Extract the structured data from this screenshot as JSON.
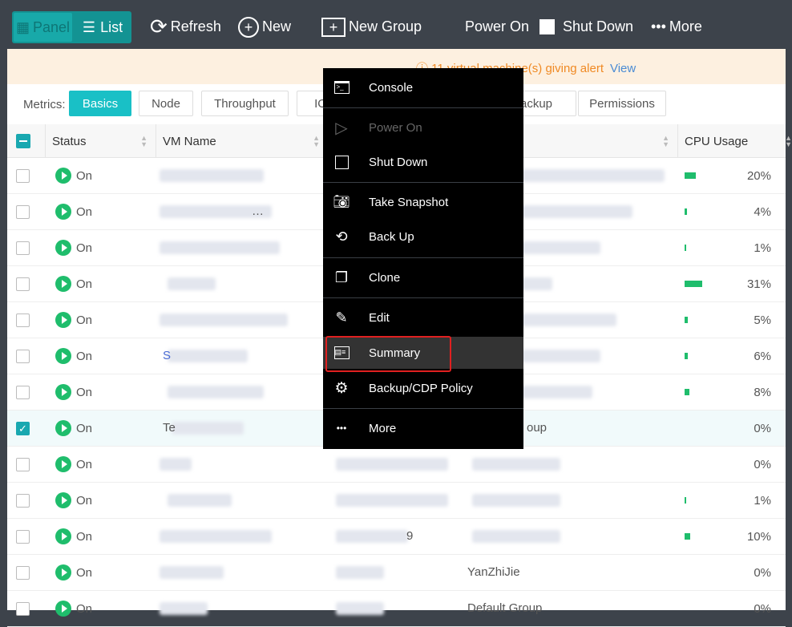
{
  "toolbar": {
    "panel": "Panel",
    "list": "List",
    "refresh": "Refresh",
    "new": "New",
    "new_group": "New Group",
    "power_on": "Power On",
    "shut_down": "Shut Down",
    "more": "More"
  },
  "alert": {
    "icon": "info-icon",
    "text": "11 virtual machine(s) giving alert",
    "link": "View"
  },
  "metrics": {
    "label": "Metrics:",
    "tabs": [
      "Basics",
      "Node",
      "Throughput",
      "IO",
      "Backup",
      "Permissions"
    ],
    "active": "Basics"
  },
  "columns": {
    "status": "Status",
    "vm_name": "VM Name",
    "cpu": "CPU Usage"
  },
  "rows": [
    {
      "status": "On",
      "name": "",
      "col4": "",
      "cpu": "20%",
      "cpu_val": 20,
      "checked": false
    },
    {
      "status": "On",
      "name": "…",
      "col4": "",
      "cpu": "4%",
      "cpu_val": 4,
      "checked": false
    },
    {
      "status": "On",
      "name": "",
      "col4": "",
      "cpu": "1%",
      "cpu_val": 1,
      "checked": false
    },
    {
      "status": "On",
      "name": "",
      "col4": "",
      "cpu": "31%",
      "cpu_val": 31,
      "checked": false
    },
    {
      "status": "On",
      "name": "",
      "col4": "",
      "cpu": "5%",
      "cpu_val": 5,
      "checked": false
    },
    {
      "status": "On",
      "name": "S",
      "col4": "",
      "cpu": "6%",
      "cpu_val": 6,
      "checked": false
    },
    {
      "status": "On",
      "name": "",
      "col4": "",
      "cpu": "8%",
      "cpu_val": 8,
      "checked": false
    },
    {
      "status": "On",
      "name": "Te",
      "col4": "oup",
      "cpu": "0%",
      "cpu_val": 0,
      "checked": true
    },
    {
      "status": "On",
      "name": "",
      "col4": "",
      "cpu": "0%",
      "cpu_val": 0,
      "checked": false
    },
    {
      "status": "On",
      "name": "",
      "col4": "",
      "cpu": "1%",
      "cpu_val": 1,
      "checked": false
    },
    {
      "status": "On",
      "name": "",
      "col3": "9",
      "col4": "",
      "cpu": "10%",
      "cpu_val": 10,
      "checked": false
    },
    {
      "status": "On",
      "name": "",
      "col4": "YanZhiJie",
      "cpu": "0%",
      "cpu_val": 0,
      "checked": false
    },
    {
      "status": "On",
      "name": "",
      "col4": "Default Group",
      "cpu": "0%",
      "cpu_val": 0,
      "checked": false
    }
  ],
  "context_menu": [
    {
      "label": "Console",
      "icon": "console-icon"
    },
    {
      "label": "Power On",
      "icon": "play-icon",
      "disabled": true
    },
    {
      "label": "Shut Down",
      "icon": "stop-icon"
    },
    {
      "label": "Take Snapshot",
      "icon": "camera-icon"
    },
    {
      "label": "Back Up",
      "icon": "backup-icon"
    },
    {
      "label": "Clone",
      "icon": "clone-icon"
    },
    {
      "label": "Edit",
      "icon": "edit-icon"
    },
    {
      "label": "Summary",
      "icon": "summary-icon",
      "highlighted": true
    },
    {
      "label": "Backup/CDP Policy",
      "icon": "gear-icon"
    },
    {
      "label": "More",
      "icon": "more-icon"
    }
  ]
}
